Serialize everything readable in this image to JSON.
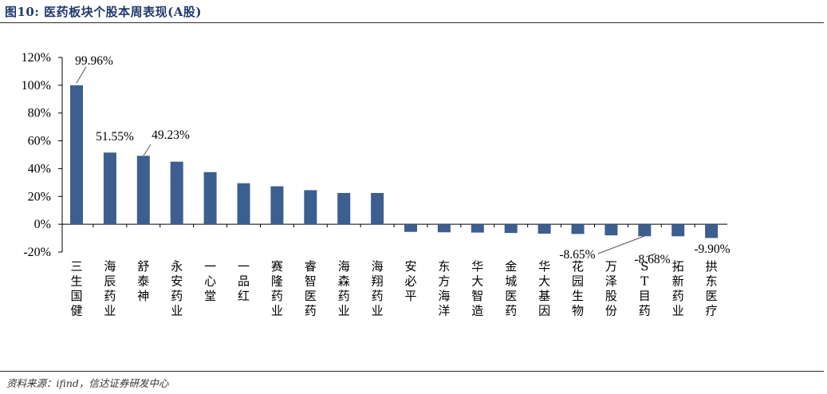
{
  "header": {
    "title": "图10: 医药板块个股本周表现(A股)"
  },
  "footer": {
    "source": "资料来源：ifind，信达证券研发中心"
  },
  "chart_data": {
    "type": "bar",
    "title": "",
    "xlabel": "",
    "ylabel": "",
    "ylim": [
      -20,
      120
    ],
    "y_ticks": [
      "120%",
      "100%",
      "80%",
      "60%",
      "40%",
      "20%",
      "0%",
      "-20%"
    ],
    "y_tick_values": [
      120,
      100,
      80,
      60,
      40,
      20,
      0,
      -20
    ],
    "bar_color": "#3d5f8f",
    "grid": false,
    "categories": [
      "三生国健",
      "海辰药业",
      "舒泰神",
      "永安药业",
      "一心堂",
      "一品红",
      "赛隆药业",
      "睿智医药",
      "海森药业",
      "海翔药业",
      "安必平",
      "东方海洋",
      "华大智造",
      "金城医药",
      "华大基因",
      "花园生物",
      "万泽股份",
      "ST目药",
      "拓新药业",
      "拱东医疗"
    ],
    "values": [
      99.96,
      51.55,
      49.23,
      45.0,
      37.5,
      29.5,
      27.3,
      24.5,
      22.5,
      22.5,
      -5.5,
      -5.8,
      -6.0,
      -6.3,
      -6.8,
      -7.0,
      -8.0,
      -8.65,
      -8.68,
      -9.9
    ],
    "data_labels": [
      {
        "index": 0,
        "text": "99.96%"
      },
      {
        "index": 1,
        "text": "51.55%"
      },
      {
        "index": 2,
        "text": "49.23%"
      },
      {
        "index": 17,
        "text": "-8.65%"
      },
      {
        "index": 18,
        "text": "-8.68%"
      },
      {
        "index": 19,
        "text": "-9.90%"
      }
    ]
  }
}
